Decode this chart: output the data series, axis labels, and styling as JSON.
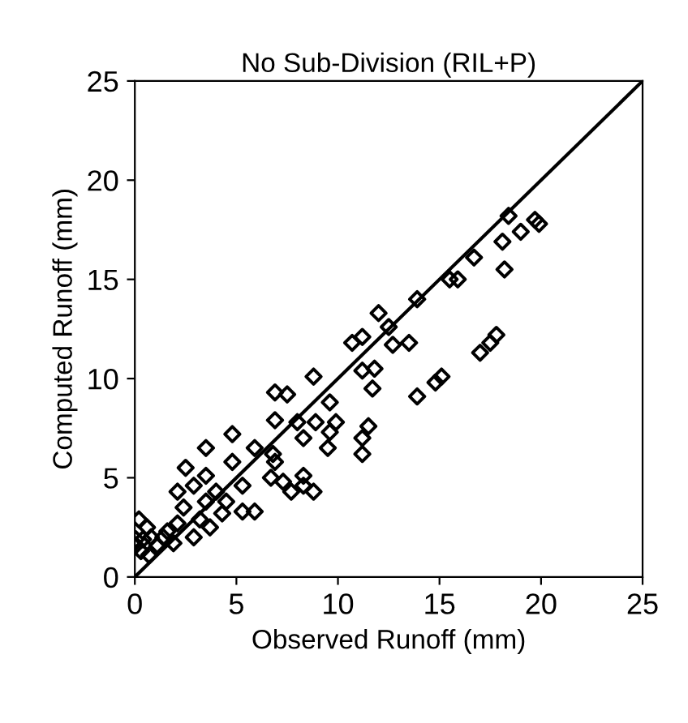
{
  "chart_data": {
    "type": "scatter",
    "title": "No Sub-Division (RIL+P)",
    "xlabel": "Observed Runoff (mm)",
    "ylabel": "Computed Runoff (mm)",
    "xlim": [
      0,
      25
    ],
    "ylim": [
      0,
      25
    ],
    "xticks": [
      0,
      5,
      10,
      15,
      20,
      25
    ],
    "yticks": [
      0,
      5,
      10,
      15,
      20,
      25
    ],
    "grid": false,
    "series": [
      {
        "marker": "diamond",
        "color": "#000000",
        "x": [
          18.4,
          19.9,
          19.7,
          19.0,
          18.1,
          18.2,
          16.7,
          15.9,
          15.5,
          13.9,
          12.0,
          12.5,
          11.2,
          10.7,
          12.7,
          13.5,
          17.8,
          17.5,
          17.0,
          15.1,
          14.8,
          13.9,
          11.8,
          11.2,
          11.7,
          8.8,
          6.9,
          7.5,
          9.6,
          6.9,
          8.0,
          8.9,
          9.9,
          9.6,
          8.3,
          11.5,
          11.2,
          11.2,
          9.5,
          4.8,
          3.5,
          5.9,
          6.8,
          6.9,
          2.5,
          4.8,
          6.7,
          7.3,
          8.3,
          7.7,
          8.3,
          8.8,
          5.3,
          5.9,
          5.3,
          3.5,
          2.9,
          2.1,
          4.0,
          4.5,
          3.5,
          2.4,
          4.3,
          3.2,
          3.7,
          2.9,
          2.1,
          1.6,
          1.9,
          1.4,
          0.2,
          0.05,
          0.3,
          0.7,
          0.8,
          1.1,
          0.6,
          0.4,
          0.05
        ],
        "values": [
          18.2,
          17.8,
          18.0,
          17.4,
          16.9,
          15.5,
          16.1,
          15.0,
          15.0,
          14.0,
          13.3,
          12.6,
          12.1,
          11.8,
          11.7,
          11.8,
          12.2,
          11.8,
          11.3,
          10.1,
          9.8,
          9.1,
          10.5,
          10.4,
          9.5,
          10.1,
          9.3,
          9.2,
          8.8,
          7.9,
          7.8,
          7.8,
          7.8,
          7.3,
          7.0,
          7.6,
          7.0,
          6.2,
          6.5,
          7.2,
          6.5,
          6.5,
          6.2,
          5.8,
          5.5,
          5.8,
          5.0,
          4.8,
          5.1,
          4.3,
          4.6,
          4.3,
          4.6,
          3.3,
          3.3,
          5.1,
          4.6,
          4.3,
          4.3,
          3.8,
          3.8,
          3.5,
          3.2,
          2.9,
          2.5,
          2.0,
          2.7,
          2.3,
          1.7,
          2.0,
          2.9,
          1.6,
          1.3,
          1.1,
          2.0,
          1.6,
          2.5,
          1.9,
          1.9
        ]
      },
      {
        "type": "line",
        "color": "#000000",
        "x": [
          0,
          25
        ],
        "values": [
          0,
          25
        ]
      }
    ]
  }
}
